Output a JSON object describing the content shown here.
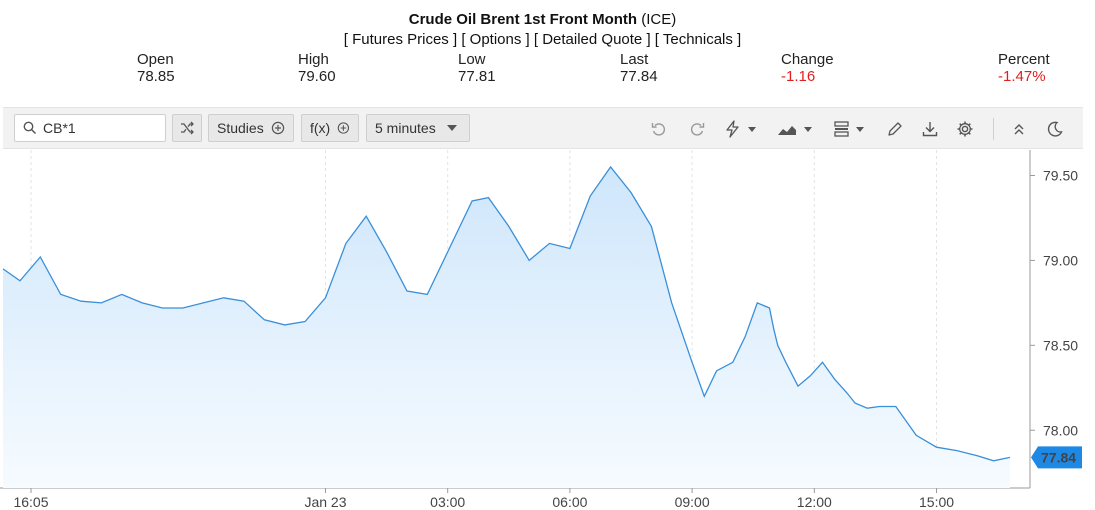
{
  "header": {
    "title_bold": "Crude Oil Brent 1st Front Month",
    "title_suffix": " (ICE)",
    "links": [
      "[ Futures Prices ]",
      "[ Options ]",
      "[ Detailed Quote ]",
      "[ Technicals ]"
    ]
  },
  "quote": {
    "open_label": "Open",
    "open_value": "78.85",
    "high_label": "High",
    "high_value": "79.60",
    "low_label": "Low",
    "low_value": "77.81",
    "last_label": "Last",
    "last_value": "77.84",
    "change_label": "Change",
    "change_value": "-1.16",
    "percent_label": "Percent",
    "percent_value": "-1.47%"
  },
  "toolbar": {
    "search_value": "CB*1",
    "studies_label": "Studies",
    "fx_label": "f(x)",
    "interval_label": "5 minutes",
    "icons": [
      "search-icon",
      "shuffle-icon",
      "plus-circle-icon",
      "undo-icon",
      "redo-icon",
      "lightning-icon",
      "mountain-chart-icon",
      "bars-icon",
      "pencil-icon",
      "download-icon",
      "gear-icon",
      "double-chevron-up-icon",
      "moon-icon"
    ]
  },
  "colors": {
    "line": "#3a8fd9",
    "fill_top": "#cfe6fb",
    "fill_bottom": "#f6fbff",
    "last_badge": "#1e88e5",
    "negative": "#e02020"
  },
  "chart_data": {
    "type": "area",
    "x_tick_labels": [
      "16:05",
      "Jan 23",
      "03:00",
      "06:00",
      "09:00",
      "12:00",
      "15:00"
    ],
    "y_tick_labels": [
      "79.50",
      "79.00",
      "78.50",
      "78.00"
    ],
    "y_ticks": [
      79.5,
      79.0,
      78.5,
      78.0
    ],
    "ylim": [
      77.66,
      79.65
    ],
    "last_value_label": "77.84",
    "grid": "vertical dashed",
    "x_hours": [
      16.0833,
      16.5,
      17,
      17.5,
      18,
      18.5,
      19,
      19.5,
      20,
      20.5,
      21,
      21.5,
      22,
      22.5,
      23,
      23.5,
      24,
      24.5,
      25,
      25.5,
      26,
      26.5,
      27,
      27.3,
      27.6,
      28,
      28.5,
      29,
      29.5,
      30,
      30.5,
      31,
      31.5,
      32,
      32.5,
      33,
      33.3,
      33.6,
      34,
      34.3,
      34.6,
      34.9,
      35,
      35.1,
      35.3,
      35.6,
      35.9,
      36.2,
      36.5,
      36.8,
      37,
      37.3,
      37.6,
      38,
      38.5,
      39,
      39.5,
      40,
      40.4,
      40.8
    ],
    "y_values": [
      78.95,
      78.88,
      79.02,
      78.8,
      78.76,
      78.75,
      78.8,
      78.75,
      78.72,
      78.72,
      78.75,
      78.78,
      78.76,
      78.65,
      78.62,
      78.64,
      78.78,
      79.1,
      79.26,
      79.05,
      78.82,
      78.8,
      79.05,
      79.2,
      79.35,
      79.37,
      79.2,
      79.0,
      79.1,
      79.07,
      79.38,
      79.55,
      79.4,
      79.2,
      78.75,
      78.4,
      78.2,
      78.35,
      78.4,
      78.55,
      78.75,
      78.72,
      78.6,
      78.5,
      78.4,
      78.26,
      78.32,
      78.4,
      78.3,
      78.22,
      78.16,
      78.13,
      78.14,
      78.14,
      77.97,
      77.9,
      77.88,
      77.85,
      77.82,
      77.84
    ]
  }
}
